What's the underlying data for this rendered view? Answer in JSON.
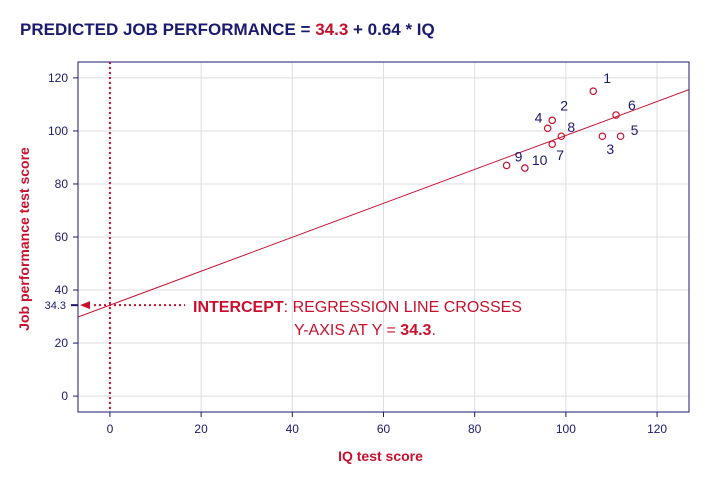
{
  "title": {
    "prefix": "PREDICTED JOB PERFORMANCE = ",
    "intercept": "34.3",
    "suffix": " + 0.64 * IQ"
  },
  "colors": {
    "navy": "#1a1a6e",
    "red": "#c8102e",
    "grid": "#dddddd"
  },
  "chart_data": {
    "type": "scatter",
    "title": "PREDICTED JOB PERFORMANCE = 34.3 + 0.64 * IQ",
    "xlabel": "IQ test score",
    "ylabel": "Job performance test score",
    "xlim": [
      -7,
      127
    ],
    "ylim": [
      -6,
      126
    ],
    "xticks": [
      0,
      20,
      40,
      60,
      80,
      100,
      120
    ],
    "yticks": [
      0,
      20,
      40,
      60,
      80,
      100,
      120
    ],
    "grid": true,
    "points": [
      {
        "label": "1",
        "x": 106,
        "y": 115
      },
      {
        "label": "2",
        "x": 97,
        "y": 104
      },
      {
        "label": "3",
        "x": 108,
        "y": 98
      },
      {
        "label": "4",
        "x": 96,
        "y": 101
      },
      {
        "label": "5",
        "x": 112,
        "y": 98
      },
      {
        "label": "6",
        "x": 111,
        "y": 106
      },
      {
        "label": "7",
        "x": 97,
        "y": 95
      },
      {
        "label": "8",
        "x": 99,
        "y": 98
      },
      {
        "label": "9",
        "x": 87,
        "y": 87
      },
      {
        "label": "10",
        "x": 91,
        "y": 86
      }
    ],
    "regression": {
      "intercept": 34.3,
      "slope": 0.64
    },
    "intercept_marker_label": "34.3",
    "annotation": {
      "line1_bold": "INTERCEPT",
      "line1_rest": ": REGRESSION LINE CROSSES",
      "line2_rest": "Y-AXIS AT Y = ",
      "line2_bold": "34.3",
      "line2_end": "."
    }
  }
}
